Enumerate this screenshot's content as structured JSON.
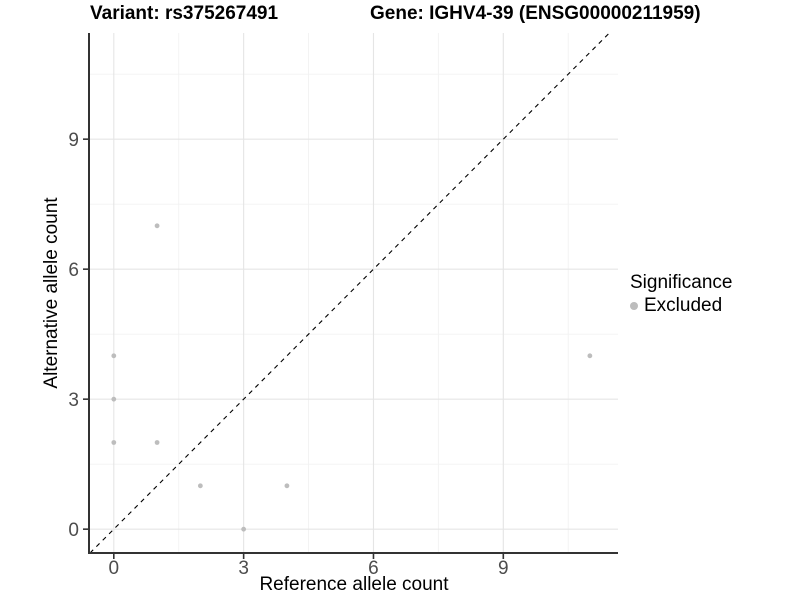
{
  "chart_data": {
    "type": "scatter",
    "title_left": "Variant: rs375267491",
    "title_right": "Gene: IGHV4-39 (ENSG00000211959)",
    "xlabel": "Reference allele count",
    "ylabel": "Alternative allele count",
    "x_ticks": [
      0,
      3,
      6,
      9
    ],
    "y_ticks": [
      0,
      3,
      6,
      9
    ],
    "x_minor_ticks": [
      1.5,
      4.5,
      7.5,
      10.5
    ],
    "y_minor_ticks": [
      1.5,
      4.5,
      7.5,
      10.5
    ],
    "xlim": [
      -0.55,
      11.65
    ],
    "ylim": [
      -0.55,
      11.45
    ],
    "grid": "major and minor, light gray on white",
    "identity_line": "dashed black y=x line",
    "series": [
      {
        "name": "Excluded",
        "color": "#bdbdbd",
        "points": [
          [
            0,
            2
          ],
          [
            0,
            3
          ],
          [
            0,
            4
          ],
          [
            1,
            2
          ],
          [
            1,
            7
          ],
          [
            2,
            1
          ],
          [
            3,
            0
          ],
          [
            4,
            1
          ],
          [
            11,
            4
          ]
        ]
      }
    ],
    "legend": {
      "title": "Significance",
      "position": "right",
      "entries": [
        {
          "label": "Excluded",
          "color": "#bdbdbd"
        }
      ]
    }
  },
  "colors": {
    "background": "#ffffff",
    "point": "#bdbdbd",
    "grid_major": "#e5e5e5",
    "grid_minor": "#f2f2f2",
    "axis_line": "#333333",
    "tick_mark": "#333333",
    "tick_text": "#4d4d4d",
    "title_text": "#000000",
    "identity_line": "#000000"
  }
}
